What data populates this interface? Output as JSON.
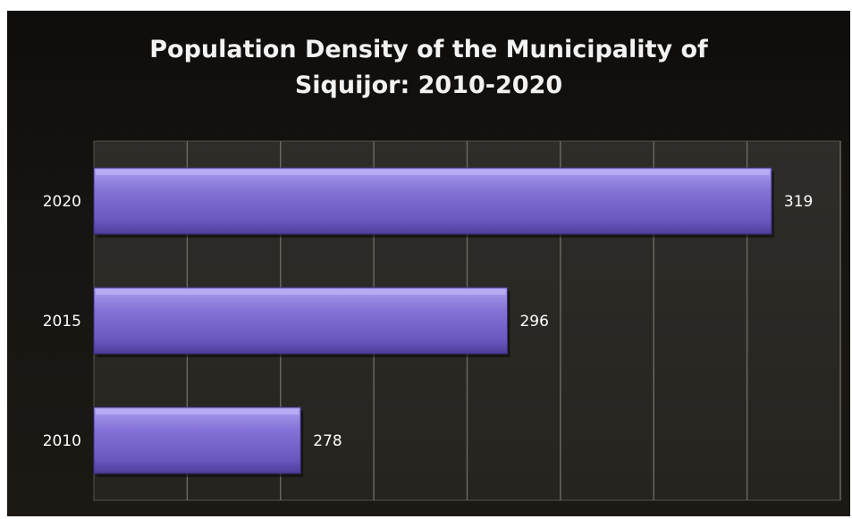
{
  "chart_data": {
    "type": "bar",
    "orientation": "horizontal",
    "title": "Population Density of the Municipality of\nSiquijor: 2010-2020",
    "categories": [
      "2020",
      "2015",
      "2010"
    ],
    "values": [
      319,
      296,
      278
    ],
    "data_labels": [
      "319",
      "296",
      "278"
    ],
    "xlim": [
      260,
      325
    ],
    "grid": true,
    "legend": "none",
    "bar_color": "#7b68c9",
    "background_color": "#1a1714",
    "plot_background_color": "#2b2925"
  }
}
